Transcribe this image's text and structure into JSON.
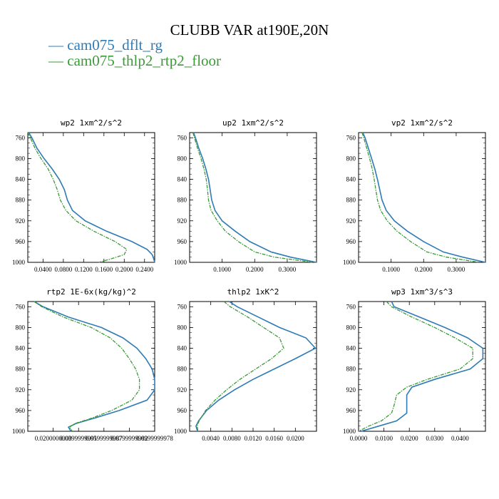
{
  "chart_data": {
    "title": "CLUBB VAR at190E,20N",
    "legend": [
      {
        "name": "cam075_dflt_rg",
        "color": "#2f7bb5"
      },
      {
        "name": "cam075_thlp2_rtp2_floor",
        "color": "#3a9b36"
      }
    ],
    "y_axis": {
      "range": [
        1000,
        750
      ],
      "ticks": [
        760,
        800,
        840,
        880,
        920,
        960,
        1000
      ]
    },
    "panels": [
      {
        "type": "line",
        "title": "wp2   1xm^2/s^2",
        "xlim": [
          0.01,
          0.26
        ],
        "xticks": [
          "0.0400",
          "0.0800",
          "0.1200",
          "0.1600",
          "0.2000",
          "0.2400"
        ],
        "xtick_values": [
          0.04,
          0.08,
          0.12,
          0.16,
          0.2,
          0.24
        ],
        "y": [
          750,
          760,
          780,
          800,
          820,
          840,
          860,
          880,
          900,
          920,
          940,
          960,
          975,
          985,
          993,
          1000
        ],
        "series": [
          {
            "name": "cam075_dflt_rg",
            "values": [
              0.012,
              0.018,
              0.028,
              0.042,
              0.058,
              0.072,
              0.082,
              0.088,
              0.098,
              0.123,
              0.165,
              0.215,
              0.245,
              0.255,
              0.258,
              0.26
            ]
          },
          {
            "name": "cam075_thlp2_rtp2_floor",
            "values": [
              0.01,
              0.015,
              0.024,
              0.036,
              0.05,
              0.06,
              0.068,
              0.074,
              0.085,
              0.105,
              0.14,
              0.182,
              0.205,
              0.2,
              0.175,
              0.15
            ]
          }
        ]
      },
      {
        "type": "line",
        "title": "up2   1xm^2/s^2",
        "xlim": [
          0.0,
          0.39
        ],
        "xticks": [
          "0.1000",
          "0.2000",
          "0.3000"
        ],
        "xtick_values": [
          0.1,
          0.2,
          0.3
        ],
        "y": [
          750,
          760,
          780,
          800,
          820,
          840,
          860,
          880,
          900,
          920,
          940,
          960,
          980,
          990,
          1000
        ],
        "series": [
          {
            "name": "cam075_dflt_rg",
            "values": [
              0.012,
              0.018,
              0.028,
              0.04,
              0.05,
              0.058,
              0.063,
              0.068,
              0.078,
              0.1,
              0.14,
              0.185,
              0.25,
              0.31,
              0.39
            ]
          },
          {
            "name": "cam075_thlp2_rtp2_floor",
            "values": [
              0.01,
              0.015,
              0.024,
              0.035,
              0.044,
              0.051,
              0.055,
              0.058,
              0.066,
              0.085,
              0.11,
              0.15,
              0.2,
              0.26,
              0.38
            ]
          }
        ]
      },
      {
        "type": "line",
        "title": "vp2   1xm^2/s^2",
        "xlim": [
          0.0,
          0.39
        ],
        "xticks": [
          "0.1000",
          "0.2000",
          "0.3000"
        ],
        "xtick_values": [
          0.1,
          0.2,
          0.3
        ],
        "y": [
          750,
          760,
          780,
          800,
          820,
          840,
          860,
          880,
          900,
          920,
          940,
          960,
          980,
          990,
          1000
        ],
        "series": [
          {
            "name": "cam075_dflt_rg",
            "values": [
              0.013,
              0.02,
              0.03,
              0.04,
              0.05,
              0.058,
              0.065,
              0.072,
              0.085,
              0.11,
              0.15,
              0.2,
              0.26,
              0.32,
              0.39
            ]
          },
          {
            "name": "cam075_thlp2_rtp2_floor",
            "values": [
              0.011,
              0.016,
              0.025,
              0.034,
              0.042,
              0.048,
              0.053,
              0.058,
              0.068,
              0.088,
              0.118,
              0.16,
              0.21,
              0.27,
              0.37
            ]
          }
        ]
      },
      {
        "type": "line",
        "title": "rtp2   1E-6x(kg/kg)^2",
        "xlim": [
          0.0,
          0.1
        ],
        "xticks": [
          "0.0200000000",
          "0.0399999991",
          "0.0599999987",
          "0.0799999982",
          "0.0999999978"
        ],
        "xtick_values": [
          0.02,
          0.04,
          0.06,
          0.08,
          0.1
        ],
        "y": [
          750,
          760,
          780,
          800,
          820,
          840,
          860,
          880,
          900,
          920,
          940,
          960,
          975,
          985,
          992,
          1000
        ],
        "series": [
          {
            "name": "cam075_dflt_rg",
            "values": [
              0.005,
              0.012,
              0.032,
              0.058,
              0.075,
              0.086,
              0.093,
              0.098,
              0.1,
              0.1,
              0.094,
              0.072,
              0.052,
              0.038,
              0.032,
              0.034
            ]
          },
          {
            "name": "cam075_thlp2_rtp2_floor",
            "values": [
              0.005,
              0.011,
              0.028,
              0.05,
              0.065,
              0.074,
              0.08,
              0.085,
              0.088,
              0.088,
              0.082,
              0.066,
              0.05,
              0.037,
              0.033,
              0.035
            ]
          }
        ]
      },
      {
        "type": "line",
        "title": "thlp2   1xK^2",
        "xlim": [
          0.0,
          0.024
        ],
        "xticks": [
          "0.0040",
          "0.0080",
          "0.0120",
          "0.0160",
          "0.0200"
        ],
        "xtick_values": [
          0.004,
          0.008,
          0.012,
          0.016,
          0.02
        ],
        "y": [
          750,
          760,
          780,
          800,
          820,
          840,
          860,
          880,
          900,
          920,
          940,
          960,
          980,
          990,
          1000
        ],
        "series": [
          {
            "name": "cam075_dflt_rg",
            "values": [
              0.0075,
              0.009,
              0.013,
              0.017,
              0.022,
              0.0238,
              0.02,
              0.016,
              0.012,
              0.0085,
              0.0055,
              0.0032,
              0.0017,
              0.0012,
              0.0015
            ]
          },
          {
            "name": "cam075_thlp2_rtp2_floor",
            "values": [
              0.0065,
              0.0077,
              0.011,
              0.014,
              0.017,
              0.0178,
              0.0155,
              0.0125,
              0.0095,
              0.007,
              0.0048,
              0.003,
              0.0018,
              0.0014,
              0.0016
            ]
          }
        ]
      },
      {
        "type": "line",
        "title": "wp3   1xm^3/s^3",
        "xlim": [
          0.0,
          0.05
        ],
        "xticks": [
          "0.0000",
          "0.0100",
          "0.0200",
          "0.0300",
          "0.0400"
        ],
        "xtick_values": [
          0.0,
          0.01,
          0.02,
          0.03,
          0.04
        ],
        "y": [
          750,
          760,
          780,
          800,
          820,
          840,
          860,
          880,
          900,
          915,
          930,
          950,
          965,
          980,
          990,
          1000
        ],
        "series": [
          {
            "name": "cam075_dflt_rg",
            "values": [
              0.013,
              0.014,
              0.024,
              0.034,
              0.043,
              0.049,
              0.049,
              0.044,
              0.03,
              0.021,
              0.019,
              0.019,
              0.019,
              0.015,
              0.008,
              0.001
            ]
          },
          {
            "name": "cam075_thlp2_rtp2_floor",
            "values": [
              0.011,
              0.013,
              0.021,
              0.03,
              0.038,
              0.045,
              0.045,
              0.04,
              0.027,
              0.019,
              0.015,
              0.014,
              0.013,
              0.009,
              0.004,
              0.0
            ]
          }
        ]
      }
    ]
  }
}
